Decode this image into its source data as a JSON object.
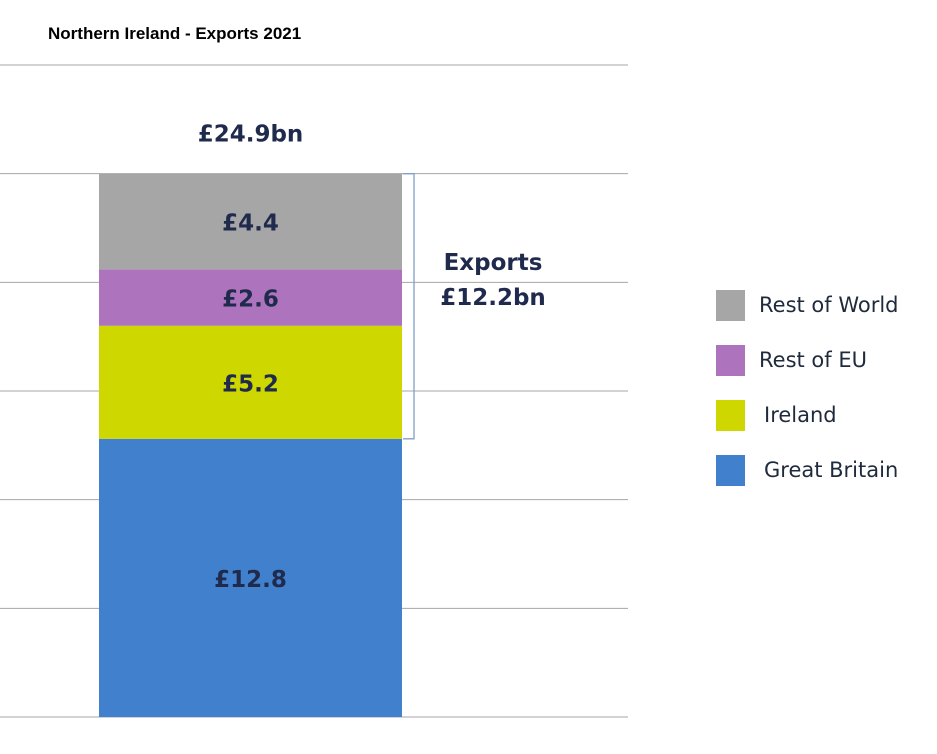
{
  "chart_data": {
    "type": "bar",
    "stacked": true,
    "title": "Northern Ireland - Exports 2021",
    "unit": "£bn",
    "categories": [
      "2021"
    ],
    "total_label": "£24.9bn",
    "series": [
      {
        "name": "Great Britain",
        "label": "£12.8",
        "values": [
          12.8
        ],
        "color": "#4180cc"
      },
      {
        "name": "Ireland",
        "label": "£5.2",
        "values": [
          5.2
        ],
        "color": "#ced800"
      },
      {
        "name": "Rest of EU",
        "label": "£2.6",
        "values": [
          2.6
        ],
        "color": "#ad74bd"
      },
      {
        "name": "Rest of World",
        "label": "£4.4",
        "values": [
          4.4
        ],
        "color": "#a6a6a6"
      }
    ],
    "bracket": {
      "title": "Exports",
      "value": "£12.2bn",
      "series_covered": [
        "Ireland",
        "Rest of EU",
        "Rest of World"
      ]
    },
    "ylim": [
      0,
      30
    ],
    "y_grid_step": 5,
    "grid": true,
    "legend_position": "right",
    "legend_order": [
      "Rest of World",
      "Rest of EU",
      "Ireland",
      "Great Britain"
    ],
    "xlabel": "",
    "ylabel": ""
  },
  "colors": {
    "grid": "#a6a6a6",
    "bracket": "#7fa0c8",
    "label_text": "#1f2a4c"
  }
}
